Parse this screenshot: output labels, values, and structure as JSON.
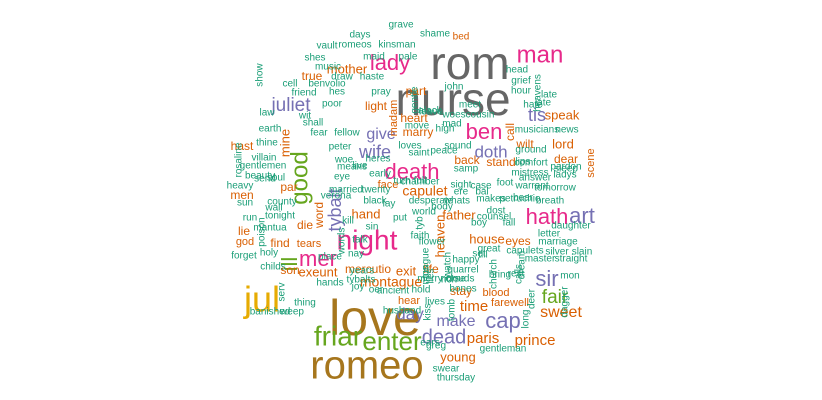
{
  "palette": {
    "teal": "#1b9e77",
    "orange": "#d95f02",
    "purple": "#7570b3",
    "pink": "#e7298a",
    "green": "#66a61e",
    "gold": "#e6ab02",
    "brown": "#a6761d",
    "gray": "#666666"
  },
  "words": [
    {
      "text": "rom",
      "color": "gray"
    },
    {
      "text": "nurse",
      "color": "gray"
    },
    {
      "text": "love",
      "color": "brown"
    },
    {
      "text": "romeo",
      "color": "brown"
    },
    {
      "text": "friar",
      "color": "green"
    },
    {
      "text": "enter",
      "color": "green"
    },
    {
      "text": "jul",
      "color": "gold"
    },
    {
      "text": "night",
      "color": "pink"
    },
    {
      "text": "man",
      "color": "pink"
    },
    {
      "text": "death",
      "color": "pink"
    },
    {
      "text": "good",
      "color": "green"
    },
    {
      "text": "hath",
      "color": "pink"
    },
    {
      "text": "art",
      "color": "purple"
    },
    {
      "text": "lady",
      "color": "pink"
    },
    {
      "text": "ben",
      "color": "pink"
    },
    {
      "text": "juliet",
      "color": "purple"
    },
    {
      "text": "mer",
      "color": "pink"
    },
    {
      "text": "ill",
      "color": "green"
    },
    {
      "text": "tybalt",
      "color": "purple"
    },
    {
      "text": "wife",
      "color": "purple"
    },
    {
      "text": "cap",
      "color": "purple"
    },
    {
      "text": "sir",
      "color": "purple"
    },
    {
      "text": "fair",
      "color": "green"
    },
    {
      "text": "dead",
      "color": "purple"
    },
    {
      "text": "make",
      "color": "purple"
    },
    {
      "text": "day",
      "color": "purple"
    },
    {
      "text": "give",
      "color": "purple"
    },
    {
      "text": "doth",
      "color": "purple"
    },
    {
      "text": "tis",
      "color": "purple"
    },
    {
      "text": "sweet",
      "color": "orange"
    },
    {
      "text": "prince",
      "color": "orange"
    },
    {
      "text": "paris",
      "color": "orange"
    },
    {
      "text": "time",
      "color": "orange"
    },
    {
      "text": "montague",
      "color": "orange"
    },
    {
      "text": "capulet",
      "color": "orange"
    },
    {
      "text": "mother",
      "color": "orange"
    },
    {
      "text": "exeunt",
      "color": "orange"
    },
    {
      "text": "young",
      "color": "orange"
    },
    {
      "text": "house",
      "color": "orange"
    },
    {
      "text": "eyes",
      "color": "orange"
    },
    {
      "text": "father",
      "color": "orange"
    },
    {
      "text": "back",
      "color": "orange"
    },
    {
      "text": "stand",
      "color": "orange"
    },
    {
      "text": "hand",
      "color": "orange"
    },
    {
      "text": "exit",
      "color": "orange"
    },
    {
      "text": "mercutio",
      "color": "orange"
    },
    {
      "text": "lord",
      "color": "orange"
    },
    {
      "text": "dear",
      "color": "orange"
    },
    {
      "text": "speak",
      "color": "orange"
    },
    {
      "text": "hast",
      "color": "orange"
    },
    {
      "text": "mine",
      "color": "orange"
    },
    {
      "text": "heaven",
      "color": "orange"
    },
    {
      "text": "word",
      "color": "orange"
    },
    {
      "text": "true",
      "color": "orange"
    },
    {
      "text": "light",
      "color": "orange"
    },
    {
      "text": "part",
      "color": "orange"
    },
    {
      "text": "heart",
      "color": "orange"
    },
    {
      "text": "marry",
      "color": "orange"
    },
    {
      "text": "wilt",
      "color": "orange"
    },
    {
      "text": "call",
      "color": "orange"
    },
    {
      "text": "stay",
      "color": "orange"
    },
    {
      "text": "blood",
      "color": "orange"
    },
    {
      "text": "farewell",
      "color": "orange"
    },
    {
      "text": "find",
      "color": "orange"
    },
    {
      "text": "tears",
      "color": "orange"
    },
    {
      "text": "die",
      "color": "orange"
    },
    {
      "text": "god",
      "color": "orange"
    },
    {
      "text": "lie",
      "color": "orange"
    },
    {
      "text": "men",
      "color": "orange"
    },
    {
      "text": "par",
      "color": "orange"
    },
    {
      "text": "life",
      "color": "orange"
    },
    {
      "text": "hear",
      "color": "orange"
    },
    {
      "text": "face",
      "color": "orange"
    },
    {
      "text": "madam",
      "color": "orange"
    },
    {
      "text": "scene",
      "color": "orange"
    },
    {
      "text": "bed",
      "color": "orange"
    },
    {
      "text": "son",
      "color": "orange"
    },
    {
      "text": "county",
      "color": "teal"
    },
    {
      "text": "married",
      "color": "teal"
    },
    {
      "text": "nay",
      "color": "teal"
    },
    {
      "text": "eye",
      "color": "teal"
    },
    {
      "text": "woe",
      "color": "teal"
    },
    {
      "text": "live",
      "color": "teal"
    },
    {
      "text": "peter",
      "color": "teal"
    },
    {
      "text": "villain",
      "color": "teal"
    },
    {
      "text": "thine",
      "color": "teal"
    },
    {
      "text": "earth",
      "color": "teal"
    },
    {
      "text": "cell",
      "color": "teal"
    },
    {
      "text": "friend",
      "color": "teal"
    },
    {
      "text": "benvolio",
      "color": "teal"
    },
    {
      "text": "poor",
      "color": "teal"
    },
    {
      "text": "pray",
      "color": "teal"
    },
    {
      "text": "grave",
      "color": "teal"
    },
    {
      "text": "days",
      "color": "teal"
    },
    {
      "text": "vault",
      "color": "teal"
    },
    {
      "text": "romeos",
      "color": "teal"
    },
    {
      "text": "kinsman",
      "color": "teal"
    },
    {
      "text": "shame",
      "color": "teal"
    },
    {
      "text": "pale",
      "color": "teal"
    },
    {
      "text": "maid",
      "color": "teal"
    },
    {
      "text": "shes",
      "color": "teal"
    },
    {
      "text": "music",
      "color": "teal"
    },
    {
      "text": "haste",
      "color": "teal"
    },
    {
      "text": "draw",
      "color": "teal"
    },
    {
      "text": "law",
      "color": "teal"
    },
    {
      "text": "head",
      "color": "teal"
    },
    {
      "text": "grief",
      "color": "teal"
    },
    {
      "text": "hour",
      "color": "teal"
    },
    {
      "text": "hate",
      "color": "teal"
    },
    {
      "text": "news",
      "color": "teal"
    },
    {
      "text": "musicians",
      "color": "teal"
    },
    {
      "text": "ground",
      "color": "teal"
    },
    {
      "text": "comfort",
      "color": "teal"
    },
    {
      "text": "mistress",
      "color": "teal"
    },
    {
      "text": "pardon",
      "color": "teal"
    },
    {
      "text": "ladys",
      "color": "teal"
    },
    {
      "text": "sleep",
      "color": "teal"
    },
    {
      "text": "tomorrow",
      "color": "teal"
    },
    {
      "text": "breath",
      "color": "teal"
    },
    {
      "text": "daughter",
      "color": "teal"
    },
    {
      "text": "letter",
      "color": "teal"
    },
    {
      "text": "marriage",
      "color": "teal"
    },
    {
      "text": "silver",
      "color": "teal"
    },
    {
      "text": "slain",
      "color": "teal"
    },
    {
      "text": "straight",
      "color": "teal"
    },
    {
      "text": "master",
      "color": "teal"
    },
    {
      "text": "mon",
      "color": "teal"
    },
    {
      "text": "capulets",
      "color": "teal"
    },
    {
      "text": "gentleman",
      "color": "teal"
    },
    {
      "text": "greg",
      "color": "teal"
    },
    {
      "text": "ears",
      "color": "teal"
    },
    {
      "text": "swear",
      "color": "teal"
    },
    {
      "text": "thursday",
      "color": "teal"
    },
    {
      "text": "husband",
      "color": "teal"
    },
    {
      "text": "ancient",
      "color": "teal"
    },
    {
      "text": "hold",
      "color": "teal"
    },
    {
      "text": "bones",
      "color": "teal"
    },
    {
      "text": "lives",
      "color": "teal"
    },
    {
      "text": "banished",
      "color": "teal"
    },
    {
      "text": "weep",
      "color": "teal"
    },
    {
      "text": "thing",
      "color": "teal"
    },
    {
      "text": "serv",
      "color": "teal"
    },
    {
      "text": "hands",
      "color": "teal"
    },
    {
      "text": "tybalts",
      "color": "teal"
    },
    {
      "text": "joy",
      "color": "teal"
    },
    {
      "text": "place",
      "color": "teal"
    },
    {
      "text": "childs",
      "color": "teal"
    },
    {
      "text": "forget",
      "color": "teal"
    },
    {
      "text": "holy",
      "color": "teal"
    },
    {
      "text": "mantua",
      "color": "teal"
    },
    {
      "text": "tonight",
      "color": "teal"
    },
    {
      "text": "run",
      "color": "teal"
    },
    {
      "text": "sun",
      "color": "teal"
    },
    {
      "text": "heavy",
      "color": "teal"
    },
    {
      "text": "beauty",
      "color": "teal"
    },
    {
      "text": "soul",
      "color": "teal"
    },
    {
      "text": "gentlemen",
      "color": "teal"
    },
    {
      "text": "verona",
      "color": "teal"
    },
    {
      "text": "twenty",
      "color": "teal"
    },
    {
      "text": "black",
      "color": "teal"
    },
    {
      "text": "early",
      "color": "teal"
    },
    {
      "text": "means",
      "color": "teal"
    },
    {
      "text": "heres",
      "color": "teal"
    },
    {
      "text": "loves",
      "color": "teal"
    },
    {
      "text": "saint",
      "color": "teal"
    },
    {
      "text": "peace",
      "color": "teal"
    },
    {
      "text": "sound",
      "color": "teal"
    },
    {
      "text": "samp",
      "color": "teal"
    },
    {
      "text": "chamber",
      "color": "teal"
    },
    {
      "text": "full",
      "color": "teal"
    },
    {
      "text": "turn",
      "color": "teal"
    },
    {
      "text": "sight",
      "color": "teal"
    },
    {
      "text": "warrant",
      "color": "teal"
    },
    {
      "text": "answer",
      "color": "teal"
    },
    {
      "text": "lips",
      "color": "teal"
    },
    {
      "text": "foot",
      "color": "teal"
    },
    {
      "text": "case",
      "color": "teal"
    },
    {
      "text": "bal",
      "color": "teal"
    },
    {
      "text": "makes",
      "color": "teal"
    },
    {
      "text": "petruchio",
      "color": "teal"
    },
    {
      "text": "bear",
      "color": "teal"
    },
    {
      "text": "dost",
      "color": "teal"
    },
    {
      "text": "counsel",
      "color": "teal"
    },
    {
      "text": "boy",
      "color": "teal"
    },
    {
      "text": "happy",
      "color": "teal"
    },
    {
      "text": "quarrel",
      "color": "teal"
    },
    {
      "text": "great",
      "color": "teal"
    },
    {
      "text": "body",
      "color": "teal"
    },
    {
      "text": "world",
      "color": "teal"
    },
    {
      "text": "faith",
      "color": "teal"
    },
    {
      "text": "flower",
      "color": "teal"
    },
    {
      "text": "tyb",
      "color": "teal"
    },
    {
      "text": "put",
      "color": "teal"
    },
    {
      "text": "kill",
      "color": "teal"
    },
    {
      "text": "sin",
      "color": "teal"
    },
    {
      "text": "years",
      "color": "teal"
    },
    {
      "text": "merry",
      "color": "teal"
    },
    {
      "text": "clouds",
      "color": "teal"
    },
    {
      "text": "rich",
      "color": "teal"
    },
    {
      "text": "set",
      "color": "teal"
    },
    {
      "text": "nurse",
      "color": "teal"
    },
    {
      "text": "desperate",
      "color": "teal"
    },
    {
      "text": "whats",
      "color": "teal"
    },
    {
      "text": "cousin",
      "color": "teal"
    },
    {
      "text": "john",
      "color": "teal"
    },
    {
      "text": "alack",
      "color": "teal"
    },
    {
      "text": "meet",
      "color": "teal"
    },
    {
      "text": "leave",
      "color": "teal"
    },
    {
      "text": "woes",
      "color": "teal"
    },
    {
      "text": "mad",
      "color": "teal"
    },
    {
      "text": "high",
      "color": "teal"
    },
    {
      "text": "move",
      "color": "teal"
    },
    {
      "text": "wit",
      "color": "teal"
    },
    {
      "text": "fear",
      "color": "teal"
    },
    {
      "text": "fellow",
      "color": "teal"
    },
    {
      "text": "hes",
      "color": "teal"
    },
    {
      "text": "shall",
      "color": "teal"
    },
    {
      "text": "show",
      "color": "teal"
    },
    {
      "text": "wall",
      "color": "teal"
    },
    {
      "text": "send",
      "color": "teal"
    },
    {
      "text": "poison",
      "color": "teal"
    },
    {
      "text": "rosaline",
      "color": "teal"
    },
    {
      "text": "kiss",
      "color": "teal"
    },
    {
      "text": "tomb",
      "color": "teal"
    },
    {
      "text": "dagger",
      "color": "teal"
    },
    {
      "text": "calls",
      "color": "teal"
    },
    {
      "text": "church",
      "color": "teal"
    },
    {
      "text": "dream",
      "color": "teal"
    },
    {
      "text": "late",
      "color": "teal"
    },
    {
      "text": "late",
      "color": "teal"
    },
    {
      "text": "heavens",
      "color": "teal"
    },
    {
      "text": "gentle",
      "color": "teal"
    },
    {
      "text": "till",
      "color": "teal"
    },
    {
      "text": "watch",
      "color": "teal"
    },
    {
      "text": "bring",
      "color": "teal"
    },
    {
      "text": "lies",
      "color": "teal"
    },
    {
      "text": "tongue",
      "color": "teal"
    },
    {
      "text": "talk",
      "color": "teal"
    },
    {
      "text": "rest",
      "color": "teal"
    },
    {
      "text": "long",
      "color": "teal"
    },
    {
      "text": "deer",
      "color": "teal"
    },
    {
      "text": "fall",
      "color": "teal"
    },
    {
      "text": "ere",
      "color": "teal"
    },
    {
      "text": "words",
      "color": "teal"
    },
    {
      "text": "lay",
      "color": "teal"
    },
    {
      "text": "mus",
      "color": "teal"
    },
    {
      "text": "oer",
      "color": "teal"
    }
  ]
}
